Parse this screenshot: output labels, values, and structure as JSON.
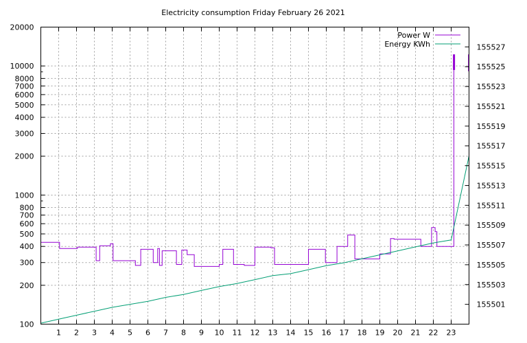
{
  "chart_data": {
    "type": "line",
    "title": "Electricity consumption Friday February 26 2021",
    "xlabel": "",
    "ylabel": "",
    "x_range": [
      0,
      24
    ],
    "x_ticks": [
      1,
      2,
      3,
      4,
      5,
      6,
      7,
      8,
      9,
      10,
      11,
      12,
      13,
      14,
      15,
      16,
      17,
      18,
      19,
      20,
      21,
      22,
      23
    ],
    "y_left": {
      "scale": "log",
      "range": [
        100,
        20000
      ],
      "ticks": [
        100,
        200,
        300,
        400,
        500,
        600,
        700,
        800,
        1000,
        2000,
        3000,
        4000,
        5000,
        6000,
        7000,
        8000,
        10000,
        20000
      ],
      "tick_labels": [
        "100",
        "200",
        "300",
        "400",
        "500",
        "600",
        "700",
        "800",
        "1000",
        "2000",
        "3000",
        "4000",
        "5000",
        "6000",
        "7000",
        "8000",
        "10000",
        "20000"
      ]
    },
    "y_right": {
      "scale": "linear",
      "range": [
        155499,
        155529
      ],
      "ticks": [
        155501,
        155503,
        155505,
        155507,
        155509,
        155511,
        155513,
        155515,
        155517,
        155519,
        155521,
        155523,
        155525,
        155527
      ],
      "tick_labels": [
        "155501",
        "155503",
        "155505",
        "155507",
        "155509",
        "155511",
        "155513",
        "155515",
        "155517",
        "155519",
        "155521",
        "155523",
        "155525",
        "155527"
      ]
    },
    "grid": true,
    "legend_position": "top-right",
    "series": [
      {
        "name": "Power W",
        "axis": "left",
        "color": "#9400d3",
        "style": "step",
        "x": [
          0,
          1,
          1.05,
          2,
          2.05,
          3,
          3.1,
          3.2,
          3.3,
          3.9,
          4.05,
          5.3,
          5.6,
          6.3,
          6.55,
          6.65,
          6.8,
          7.6,
          7.9,
          8.2,
          8.6,
          10.0,
          10.2,
          10.8,
          11.4,
          12.0,
          12.9,
          13.1,
          14.6,
          15.0,
          15.95,
          16.1,
          16.6,
          17.2,
          17.6,
          18.5,
          19.0,
          19.6,
          19.8,
          21.0,
          21.3,
          21.9,
          22.1,
          22.2,
          23.05,
          23.15
        ],
        "values": [
          430,
          430,
          385,
          385,
          395,
          395,
          310,
          310,
          405,
          420,
          310,
          285,
          380,
          300,
          385,
          285,
          370,
          290,
          375,
          345,
          280,
          290,
          380,
          290,
          285,
          395,
          390,
          290,
          290,
          380,
          300,
          300,
          400,
          490,
          320,
          320,
          350,
          460,
          455,
          455,
          400,
          560,
          520,
          400,
          400,
          9300
        ]
      },
      {
        "name": "Energy KWh",
        "axis": "right",
        "color": "#009e73",
        "style": "line",
        "x": [
          0,
          1,
          2,
          3,
          4,
          5,
          6,
          7,
          8,
          9,
          10,
          11,
          12,
          13,
          14,
          15,
          16,
          17,
          18,
          19,
          20,
          21,
          22,
          23,
          24
        ],
        "values": [
          155499.1,
          155499.5,
          155499.9,
          155500.3,
          155500.7,
          155501.0,
          155501.3,
          155501.7,
          155502.0,
          155502.4,
          155502.8,
          155503.1,
          155503.5,
          155503.9,
          155504.1,
          155504.5,
          155504.9,
          155505.2,
          155505.6,
          155506.0,
          155506.4,
          155506.8,
          155507.2,
          155507.5,
          155516.0
        ]
      }
    ],
    "legend_labels": [
      "Power W",
      "Energy KWh"
    ]
  }
}
